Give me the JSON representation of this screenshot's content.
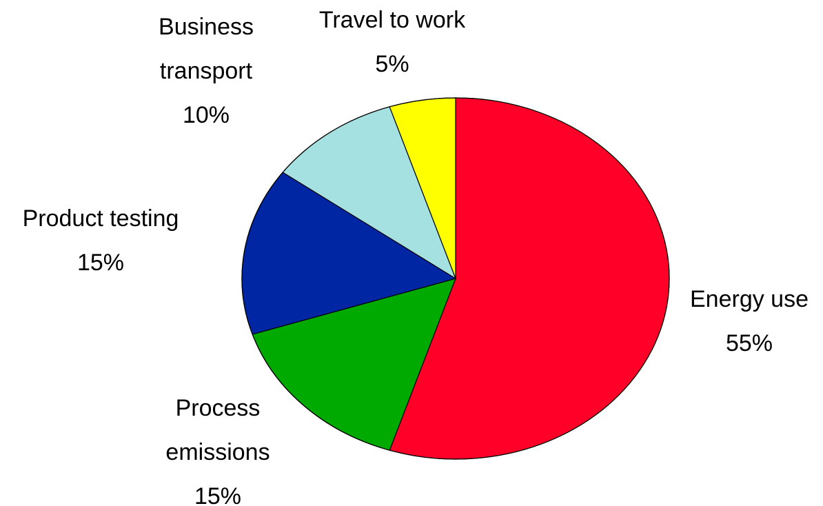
{
  "chart_data": {
    "type": "pie",
    "slices": [
      {
        "label_lines": [
          "Energy use"
        ],
        "value": 55,
        "value_label": "55%",
        "color": "#ff0029"
      },
      {
        "label_lines": [
          "Process",
          "emissions"
        ],
        "value": 15,
        "value_label": "15%",
        "color": "#00aa00"
      },
      {
        "label_lines": [
          "Product testing"
        ],
        "value": 15,
        "value_label": "15%",
        "color": "#0026a3"
      },
      {
        "label_lines": [
          "Business",
          "transport"
        ],
        "value": 10,
        "value_label": "10%",
        "color": "#a4e1e0"
      },
      {
        "label_lines": [
          "Travel to work"
        ],
        "value": 5,
        "value_label": "5%",
        "color": "#ffff00"
      }
    ],
    "start_angle_deg": 0,
    "direction": "clockwise",
    "legend": "none",
    "labels_outside": true
  }
}
